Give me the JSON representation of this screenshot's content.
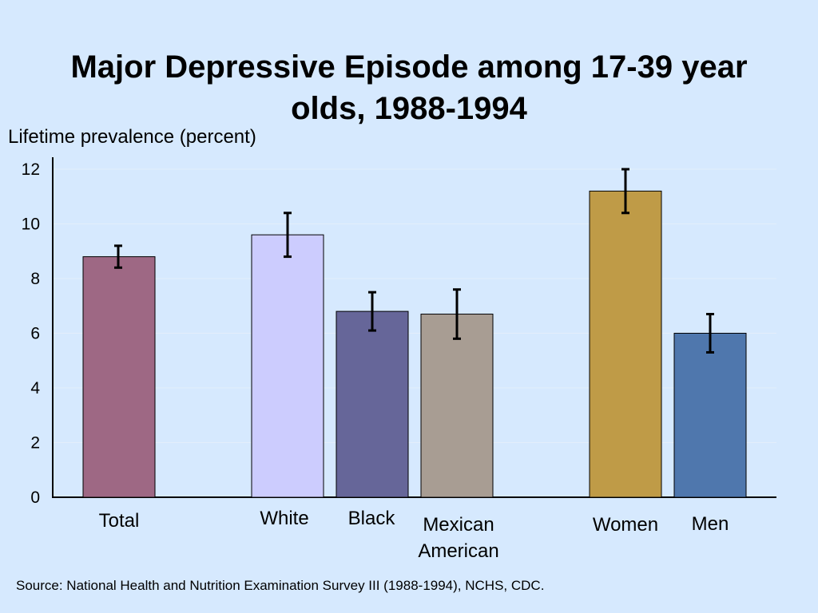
{
  "chart_data": {
    "type": "bar",
    "title_lines": [
      "Major Depressive Episode among 17-39 year",
      "olds, 1988-1994"
    ],
    "ylabel": "Lifetime prevalence (percent)",
    "xlabel": "",
    "ylim": [
      0,
      12
    ],
    "yticks": [
      "0",
      "2",
      "4",
      "6",
      "8",
      "10",
      "12"
    ],
    "grid": true,
    "categories": [
      {
        "label": [
          "Total"
        ],
        "value": 8.8,
        "err_low": 8.4,
        "err_high": 9.2,
        "color": "#9e6884"
      },
      {
        "label": [
          "White"
        ],
        "value": 9.6,
        "err_low": 8.8,
        "err_high": 10.4,
        "color": "#ccccfe"
      },
      {
        "label": [
          "Black"
        ],
        "value": 6.8,
        "err_low": 6.1,
        "err_high": 7.5,
        "color": "#666699"
      },
      {
        "label": [
          "Mexican",
          "American"
        ],
        "value": 6.7,
        "err_low": 5.8,
        "err_high": 7.6,
        "color": "#a89d93"
      },
      {
        "label": [
          "Women"
        ],
        "value": 11.2,
        "err_low": 10.4,
        "err_high": 12.0,
        "color": "#bf9b47"
      },
      {
        "label": [
          "Men"
        ],
        "value": 6.0,
        "err_low": 5.3,
        "err_high": 6.7,
        "color": "#4f77ad"
      }
    ],
    "group_gaps_after": [
      0,
      3
    ],
    "source": "Source:  National Health and Nutrition Examination Survey III (1988-1994), NCHS, CDC."
  }
}
